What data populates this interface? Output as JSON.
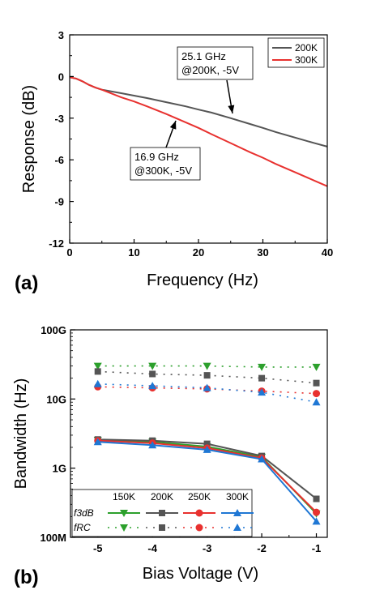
{
  "chart_data": [
    {
      "panel": "(a)",
      "type": "line",
      "xlabel": "Frequency (Hz)",
      "ylabel": "Response (dB)",
      "xlim": [
        0,
        40
      ],
      "ylim": [
        -12,
        3
      ],
      "xticks": [
        "0",
        "10",
        "20",
        "30",
        "40"
      ],
      "yticks": [
        "3",
        "0",
        "-3",
        "-6",
        "-9",
        "-12"
      ],
      "legend_position": "top-right",
      "series": [
        {
          "name": "200K",
          "color": "#555555",
          "x": [
            0,
            1,
            2,
            3,
            4,
            5,
            8,
            10,
            12,
            15,
            18,
            20,
            22,
            25,
            28,
            30,
            32,
            35,
            38,
            40
          ],
          "y": [
            -0.05,
            -0.15,
            -0.35,
            -0.6,
            -0.8,
            -0.95,
            -1.2,
            -1.38,
            -1.55,
            -1.85,
            -2.15,
            -2.38,
            -2.6,
            -3.0,
            -3.42,
            -3.7,
            -4.0,
            -4.4,
            -4.8,
            -5.05
          ]
        },
        {
          "name": "300K",
          "color": "#e8312f",
          "x": [
            0,
            1,
            2,
            3,
            4,
            5,
            8,
            10,
            12,
            15,
            18,
            20,
            22,
            25,
            28,
            30,
            32,
            35,
            38,
            40
          ],
          "y": [
            -0.05,
            -0.15,
            -0.35,
            -0.6,
            -0.8,
            -0.95,
            -1.5,
            -1.8,
            -2.15,
            -2.7,
            -3.3,
            -3.7,
            -4.15,
            -4.8,
            -5.45,
            -5.85,
            -6.3,
            -6.9,
            -7.5,
            -7.9
          ]
        }
      ],
      "annotations": [
        {
          "lines": [
            "25.1 GHz",
            "@200K, -5V"
          ],
          "arrow_x": 25.1,
          "arrow_y": -3.0
        },
        {
          "lines": [
            "16.9 GHz",
            "@300K, -5V"
          ],
          "arrow_x": 16.9,
          "arrow_y": -3.2
        }
      ]
    },
    {
      "panel": "(b)",
      "type": "line",
      "xlabel": "Bias Voltage (V)",
      "ylabel": "Bandwidth (Hz)",
      "xlim": [
        -5.5,
        -0.8
      ],
      "ylim": [
        100000000,
        100000000000
      ],
      "yscale": "log",
      "xticks": [
        "-5",
        "-4",
        "-3",
        "-2",
        "-1"
      ],
      "yticks": [
        "100G",
        "10G",
        "1G",
        "100M"
      ],
      "legend_position": "bottom-left",
      "legend_columns": [
        "150K",
        "200K",
        "250K",
        "300K"
      ],
      "legend_rows": [
        "f3dB",
        "fRC"
      ],
      "x": [
        -5,
        -4,
        -3,
        -2,
        -1
      ],
      "series": [
        {
          "name": "150K",
          "kind": "f3dB",
          "color": "#2ca02c",
          "marker": "triangle-down",
          "values": [
            2550000000,
            2400000000,
            2050000000,
            1450000000,
            220000000
          ]
        },
        {
          "name": "200K",
          "kind": "f3dB",
          "color": "#555555",
          "marker": "square",
          "values": [
            2600000000,
            2500000000,
            2250000000,
            1500000000,
            360000000
          ]
        },
        {
          "name": "250K",
          "kind": "f3dB",
          "color": "#e8312f",
          "marker": "circle",
          "values": [
            2500000000,
            2300000000,
            1950000000,
            1400000000,
            230000000
          ]
        },
        {
          "name": "300K",
          "kind": "f3dB",
          "color": "#1f77d4",
          "marker": "triangle-up",
          "values": [
            2400000000,
            2150000000,
            1850000000,
            1350000000,
            170000000
          ]
        },
        {
          "name": "150K",
          "kind": "fRC",
          "color": "#2ca02c",
          "marker": "triangle-down",
          "values": [
            30000000000,
            30000000000,
            30000000000,
            29000000000,
            29000000000
          ]
        },
        {
          "name": "200K",
          "kind": "fRC",
          "color": "#555555",
          "marker": "square",
          "values": [
            25000000000,
            23000000000,
            22000000000,
            20000000000,
            17000000000
          ]
        },
        {
          "name": "250K",
          "kind": "fRC",
          "color": "#e8312f",
          "marker": "circle",
          "values": [
            15000000000,
            14500000000,
            14000000000,
            13000000000,
            12000000000
          ]
        },
        {
          "name": "300K",
          "kind": "fRC",
          "color": "#1f77d4",
          "marker": "triangle-up",
          "values": [
            16500000000,
            15500000000,
            14500000000,
            12500000000,
            9000000000
          ]
        }
      ]
    }
  ]
}
